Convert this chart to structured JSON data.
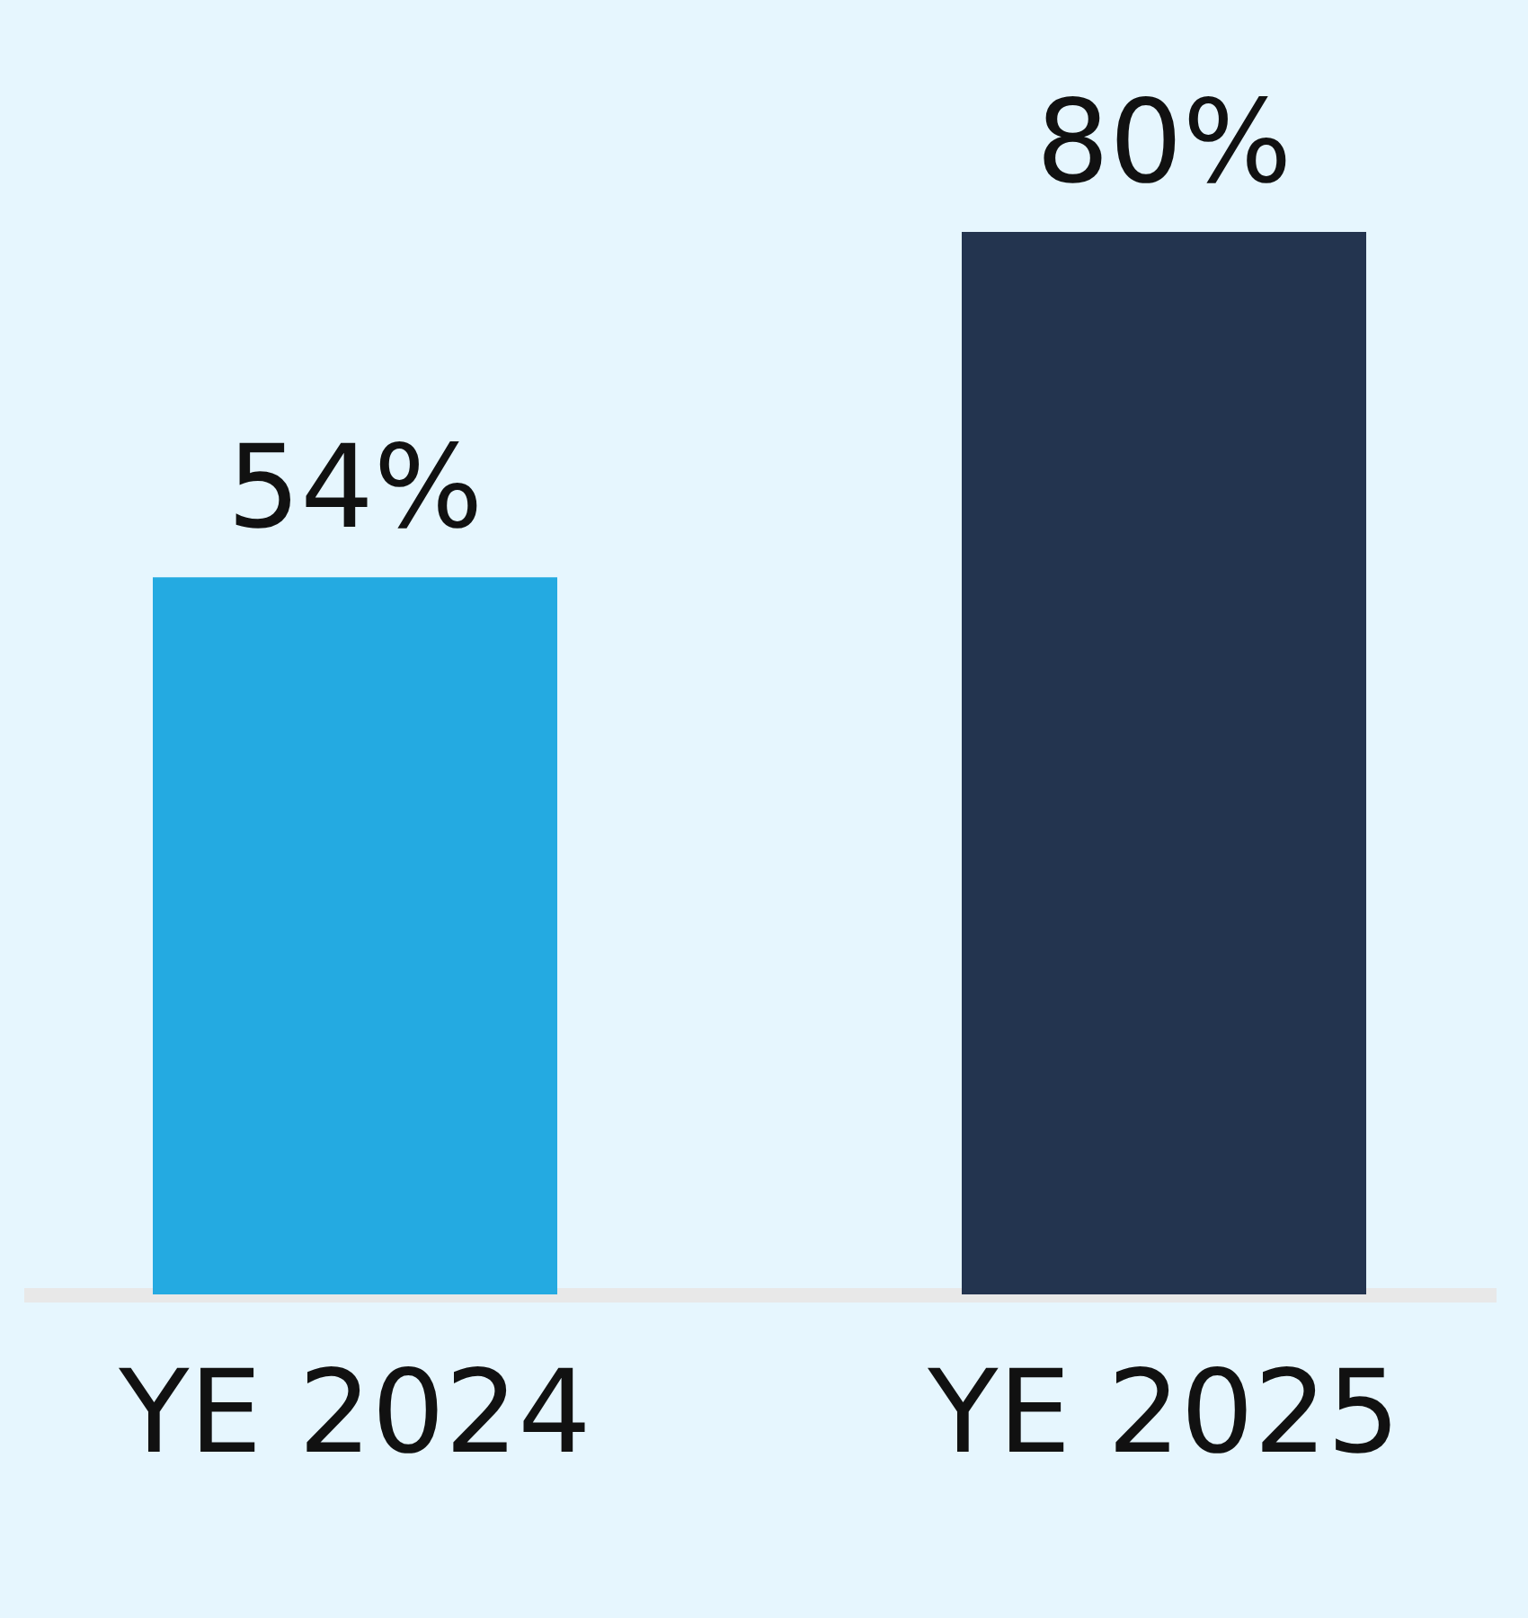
{
  "chart_data": {
    "type": "bar",
    "categories": [
      "YE 2024",
      "YE 2025"
    ],
    "values": [
      54,
      80
    ],
    "colors": [
      "#24aae1",
      "#23344f"
    ],
    "value_labels": [
      "54%",
      "80%"
    ]
  }
}
